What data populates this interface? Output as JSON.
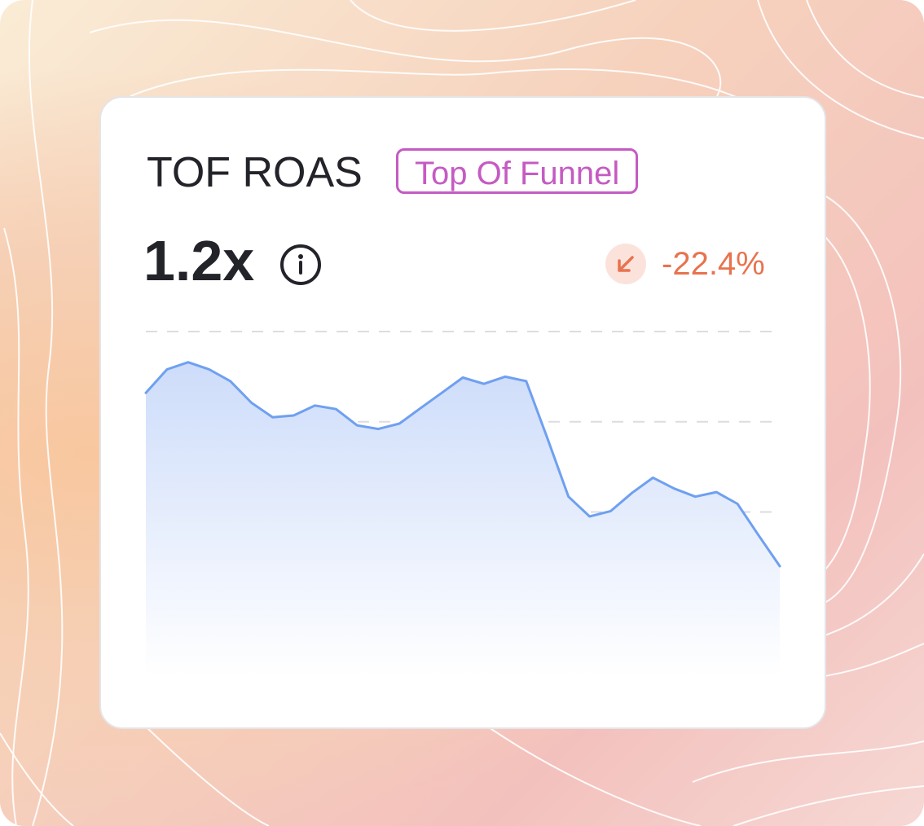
{
  "card": {
    "title": "TOF ROAS",
    "badge": "Top Of Funnel",
    "value": "1.2x",
    "change": "-22.4%"
  },
  "chart_data": {
    "type": "area",
    "color": "#6fa0f0",
    "values": [
      3.32,
      3.58,
      3.66,
      3.58,
      3.45,
      3.21,
      3.05,
      3.07,
      3.18,
      3.14,
      2.96,
      2.92,
      2.98,
      3.15,
      3.32,
      3.49,
      3.42,
      3.5,
      3.45,
      2.82,
      2.17,
      1.95,
      2.01,
      2.21,
      2.38,
      2.26,
      2.17,
      2.22,
      2.09,
      1.74,
      1.4
    ],
    "ylim": [
      0,
      4
    ],
    "yticks": [
      1,
      2,
      3,
      4
    ],
    "grid": true
  }
}
